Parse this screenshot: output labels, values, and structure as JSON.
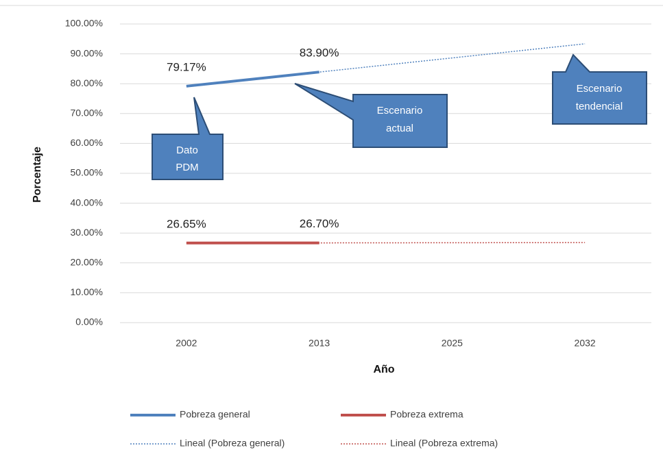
{
  "chart_data": {
    "type": "line",
    "x_label": "Año",
    "y_label": "Porcentaje",
    "categories": [
      "2002",
      "2013",
      "2025",
      "2032"
    ],
    "series": [
      {
        "name": "Pobreza general",
        "color": "#4f81bd",
        "values": [
          79.17,
          83.9,
          null,
          null
        ],
        "value_labels": [
          "79.17%",
          "83.90%",
          null,
          null
        ]
      },
      {
        "name": "Pobreza extrema",
        "color": "#c0504d",
        "values": [
          26.65,
          26.7,
          null,
          null
        ],
        "value_labels": [
          "26.65%",
          "26.70%",
          null,
          null
        ]
      },
      {
        "name": "Lineal (Pobreza general)",
        "color": "#4f81bd",
        "dashed": true,
        "values": [
          79.17,
          83.9,
          88.63,
          93.36
        ]
      },
      {
        "name": "Lineal (Pobreza extrema)",
        "color": "#c0504d",
        "dashed": true,
        "values": [
          26.65,
          26.7,
          26.75,
          26.8
        ]
      }
    ],
    "ylim": [
      0,
      100
    ],
    "yticks": [
      {
        "value": 0,
        "label": "0.00%"
      },
      {
        "value": 10,
        "label": "10.00%"
      },
      {
        "value": 20,
        "label": "20.00%"
      },
      {
        "value": 30,
        "label": "30.00%"
      },
      {
        "value": 40,
        "label": "40.00%"
      },
      {
        "value": 50,
        "label": "50.00%"
      },
      {
        "value": 60,
        "label": "60.00%"
      },
      {
        "value": 70,
        "label": "70.00%"
      },
      {
        "value": 80,
        "label": "80.00%"
      },
      {
        "value": 90,
        "label": "90.00%"
      },
      {
        "value": 100,
        "label": "100.00%"
      }
    ],
    "grid": true,
    "legend": "bottom",
    "annotations": [
      {
        "lines": [
          "Dato",
          "PDM"
        ]
      },
      {
        "lines": [
          "Escenario",
          "actual"
        ]
      },
      {
        "lines": [
          "Escenario",
          "tendencial"
        ]
      }
    ]
  }
}
